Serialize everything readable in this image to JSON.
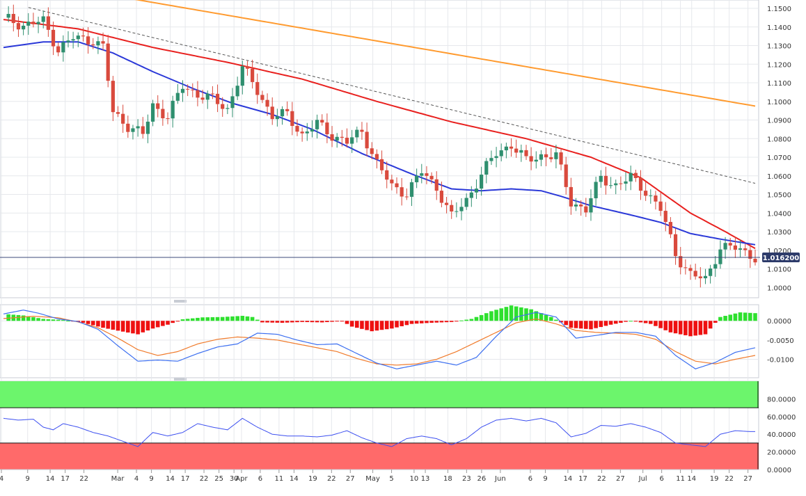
{
  "colors": {
    "bull": "#2f8f6f",
    "bear": "#d94a3d",
    "sma_200": "#ff9a2e",
    "sma_100": "#e8201e",
    "sma_50": "#2a38d8",
    "trendline": "#555555",
    "price_line": "#3c4a7a",
    "price_tag_bg": "#2d3b6a",
    "macd_pos": "#2ee02e",
    "macd_neg": "#ee1111",
    "macd_line": "#3c6ff0",
    "signal_line": "#f07a2a",
    "rsi_line": "#3c4ff0",
    "overbought_fill": "#6cf56c",
    "oversold_fill": "#ff6a6a",
    "grid": "#e6e8ec",
    "axis_text": "#333333"
  },
  "chart_data": [
    {
      "type": "candlestick",
      "title": "",
      "y_ticks": [
        "1.1500",
        "1.1400",
        "1.1300",
        "1.1200",
        "1.1100",
        "1.1000",
        "1.0900",
        "1.0800",
        "1.0700",
        "1.0600",
        "1.0500",
        "1.0400",
        "1.0300",
        "1.0200",
        "1.0100",
        "1.0000"
      ],
      "ylim": [
        0.9945,
        1.1545
      ],
      "x_ticks": [
        "4",
        "9",
        "14",
        "17",
        "22",
        "Mar",
        "4",
        "9",
        "14",
        "17",
        "22",
        "25",
        "30",
        "Apr",
        "6",
        "11",
        "14",
        "19",
        "22",
        "27",
        "May",
        "5",
        "10",
        "13",
        "18",
        "23",
        "26",
        "Jun",
        "6",
        "9",
        "14",
        "17",
        "22",
        "27",
        "Jul",
        "6",
        "11",
        "14",
        "19",
        "22",
        "27"
      ],
      "current_price": 1.0162,
      "current_price_label": "1.016200",
      "candles_close_path": [
        [
          0,
          1.145
        ],
        [
          4,
          1.141
        ],
        [
          8,
          1.143
        ],
        [
          11,
          1.128
        ],
        [
          14,
          1.134
        ],
        [
          18,
          1.133
        ],
        [
          20,
          1.129
        ],
        [
          22,
          1.094
        ],
        [
          25,
          1.087
        ],
        [
          28,
          1.082
        ],
        [
          30,
          1.098
        ],
        [
          33,
          1.092
        ],
        [
          36,
          1.108
        ],
        [
          39,
          1.104
        ],
        [
          42,
          1.101
        ],
        [
          45,
          1.096
        ],
        [
          48,
          1.118
        ],
        [
          51,
          1.106
        ],
        [
          54,
          1.092
        ],
        [
          57,
          1.093
        ],
        [
          60,
          1.082
        ],
        [
          63,
          1.088
        ],
        [
          66,
          1.082
        ],
        [
          69,
          1.078
        ],
        [
          72,
          1.084
        ],
        [
          75,
          1.067
        ],
        [
          78,
          1.054
        ],
        [
          81,
          1.051
        ],
        [
          84,
          1.062
        ],
        [
          87,
          1.054
        ],
        [
          90,
          1.038
        ],
        [
          93,
          1.047
        ],
        [
          96,
          1.061
        ],
        [
          99,
          1.072
        ],
        [
          102,
          1.077
        ],
        [
          105,
          1.068
        ],
        [
          108,
          1.071
        ],
        [
          111,
          1.071
        ],
        [
          114,
          1.046
        ],
        [
          117,
          1.042
        ],
        [
          120,
          1.059
        ],
        [
          123,
          1.055
        ],
        [
          126,
          1.059
        ],
        [
          129,
          1.052
        ],
        [
          132,
          1.042
        ],
        [
          135,
          1.018
        ],
        [
          138,
          1.007
        ],
        [
          141,
          1.004
        ],
        [
          144,
          1.022
        ],
        [
          147,
          1.021
        ],
        [
          150,
          1.018
        ],
        [
          151,
          1.0162
        ]
      ],
      "sma_200": [
        [
          0,
          1.167
        ],
        [
          151,
          1.0975
        ]
      ],
      "sma_100": [
        [
          0,
          1.144
        ],
        [
          15,
          1.139
        ],
        [
          30,
          1.129
        ],
        [
          45,
          1.121
        ],
        [
          60,
          1.112
        ],
        [
          75,
          1.1
        ],
        [
          90,
          1.089
        ],
        [
          105,
          1.08
        ],
        [
          118,
          1.07
        ],
        [
          128,
          1.059
        ],
        [
          138,
          1.04
        ],
        [
          145,
          1.03
        ],
        [
          151,
          1.021
        ]
      ],
      "sma_50": [
        [
          0,
          1.129
        ],
        [
          8,
          1.132
        ],
        [
          15,
          1.132
        ],
        [
          22,
          1.126
        ],
        [
          30,
          1.116
        ],
        [
          38,
          1.107
        ],
        [
          46,
          1.099
        ],
        [
          54,
          1.093
        ],
        [
          62,
          1.085
        ],
        [
          72,
          1.072
        ],
        [
          82,
          1.061
        ],
        [
          90,
          1.053
        ],
        [
          96,
          1.052
        ],
        [
          102,
          1.053
        ],
        [
          108,
          1.052
        ],
        [
          112,
          1.049
        ],
        [
          118,
          1.044
        ],
        [
          126,
          1.039
        ],
        [
          132,
          1.035
        ],
        [
          138,
          1.029
        ],
        [
          144,
          1.026
        ],
        [
          151,
          1.023
        ]
      ],
      "trendline": [
        [
          5,
          1.1505
        ],
        [
          151,
          1.056
        ]
      ]
    },
    {
      "type": "bar+line",
      "indicator": "MACD",
      "y_ticks": [
        "0.0000",
        "-0.0050",
        "-0.0100"
      ],
      "ylim": [
        -0.0148,
        0.0042
      ],
      "histogram": [
        [
          0,
          0.0018
        ],
        [
          4,
          0.0014
        ],
        [
          8,
          0.0005
        ],
        [
          12,
          0.0002
        ],
        [
          16,
          -0.0005
        ],
        [
          20,
          -0.0018
        ],
        [
          24,
          -0.0028
        ],
        [
          27,
          -0.0035
        ],
        [
          30,
          -0.002
        ],
        [
          33,
          -0.001
        ],
        [
          36,
          0.0004
        ],
        [
          40,
          0.0009
        ],
        [
          44,
          0.001
        ],
        [
          48,
          0.0013
        ],
        [
          50,
          0.001
        ],
        [
          52,
          -0.0004
        ],
        [
          56,
          -0.0005
        ],
        [
          60,
          -0.0003
        ],
        [
          64,
          -0.0004
        ],
        [
          68,
          -0.0001
        ],
        [
          70,
          -0.0015
        ],
        [
          74,
          -0.0027
        ],
        [
          78,
          -0.002
        ],
        [
          82,
          -0.0008
        ],
        [
          86,
          -0.0005
        ],
        [
          90,
          -0.0003
        ],
        [
          94,
          0.0005
        ],
        [
          98,
          0.0025
        ],
        [
          102,
          0.004
        ],
        [
          106,
          0.003
        ],
        [
          110,
          0.001
        ],
        [
          114,
          -0.0018
        ],
        [
          118,
          -0.0022
        ],
        [
          122,
          -0.001
        ],
        [
          126,
          0.0
        ],
        [
          130,
          -0.0008
        ],
        [
          134,
          -0.003
        ],
        [
          138,
          -0.004
        ],
        [
          141,
          -0.0035
        ],
        [
          144,
          0.001
        ],
        [
          148,
          0.0022
        ],
        [
          151,
          0.002
        ]
      ],
      "macd_line": [
        [
          0,
          0.0018
        ],
        [
          4,
          0.0028
        ],
        [
          7,
          0.002
        ],
        [
          11,
          0.0005
        ],
        [
          15,
          -0.0002
        ],
        [
          19,
          -0.0022
        ],
        [
          23,
          -0.0065
        ],
        [
          27,
          -0.0105
        ],
        [
          31,
          -0.0102
        ],
        [
          35,
          -0.0105
        ],
        [
          39,
          -0.0085
        ],
        [
          43,
          -0.0068
        ],
        [
          47,
          -0.006
        ],
        [
          51,
          -0.0032
        ],
        [
          55,
          -0.0035
        ],
        [
          59,
          -0.005
        ],
        [
          63,
          -0.0062
        ],
        [
          67,
          -0.006
        ],
        [
          71,
          -0.0085
        ],
        [
          75,
          -0.011
        ],
        [
          79,
          -0.0125
        ],
        [
          83,
          -0.0115
        ],
        [
          87,
          -0.0105
        ],
        [
          91,
          -0.0115
        ],
        [
          95,
          -0.0095
        ],
        [
          99,
          -0.004
        ],
        [
          103,
          0.001
        ],
        [
          107,
          0.0022
        ],
        [
          111,
          0.001
        ],
        [
          115,
          -0.0045
        ],
        [
          119,
          -0.0038
        ],
        [
          123,
          -0.003
        ],
        [
          127,
          -0.003
        ],
        [
          131,
          -0.004
        ],
        [
          135,
          -0.009
        ],
        [
          139,
          -0.0125
        ],
        [
          143,
          -0.0108
        ],
        [
          147,
          -0.0082
        ],
        [
          151,
          -0.007
        ]
      ],
      "signal_line": [
        [
          0,
          0.0006
        ],
        [
          6,
          0.0012
        ],
        [
          11,
          0.0008
        ],
        [
          15,
          -0.0003
        ],
        [
          19,
          -0.0018
        ],
        [
          23,
          -0.0045
        ],
        [
          27,
          -0.0075
        ],
        [
          31,
          -0.009
        ],
        [
          35,
          -0.008
        ],
        [
          39,
          -0.006
        ],
        [
          43,
          -0.0048
        ],
        [
          47,
          -0.0042
        ],
        [
          51,
          -0.0045
        ],
        [
          55,
          -0.005
        ],
        [
          59,
          -0.006
        ],
        [
          63,
          -0.007
        ],
        [
          67,
          -0.008
        ],
        [
          71,
          -0.0098
        ],
        [
          75,
          -0.0112
        ],
        [
          79,
          -0.0115
        ],
        [
          83,
          -0.0112
        ],
        [
          87,
          -0.01
        ],
        [
          91,
          -0.008
        ],
        [
          95,
          -0.0055
        ],
        [
          99,
          -0.003
        ],
        [
          103,
          -0.0005
        ],
        [
          107,
          0.0005
        ],
        [
          111,
          -0.0008
        ],
        [
          115,
          -0.0025
        ],
        [
          119,
          -0.003
        ],
        [
          123,
          -0.0032
        ],
        [
          127,
          -0.0035
        ],
        [
          131,
          -0.0048
        ],
        [
          135,
          -0.008
        ],
        [
          139,
          -0.0105
        ],
        [
          143,
          -0.0112
        ],
        [
          147,
          -0.01
        ],
        [
          151,
          -0.009
        ]
      ]
    },
    {
      "type": "line",
      "indicator": "RSI",
      "y_ticks": [
        "80.0000",
        "60.0000",
        "40.0000",
        "20.0000",
        "0.0000"
      ],
      "ylim": [
        0,
        100
      ],
      "overbought_band": [
        70,
        100
      ],
      "oversold_band": [
        0,
        30
      ],
      "rsi_line": [
        [
          0,
          58
        ],
        [
          3,
          56
        ],
        [
          6,
          57
        ],
        [
          8,
          48
        ],
        [
          10,
          45
        ],
        [
          12,
          52
        ],
        [
          15,
          48
        ],
        [
          18,
          42
        ],
        [
          21,
          38
        ],
        [
          24,
          32
        ],
        [
          27,
          26
        ],
        [
          30,
          42
        ],
        [
          33,
          38
        ],
        [
          36,
          42
        ],
        [
          39,
          52
        ],
        [
          42,
          48
        ],
        [
          45,
          45
        ],
        [
          48,
          58
        ],
        [
          51,
          48
        ],
        [
          54,
          40
        ],
        [
          57,
          38
        ],
        [
          60,
          38
        ],
        [
          63,
          37
        ],
        [
          66,
          39
        ],
        [
          69,
          44
        ],
        [
          72,
          36
        ],
        [
          75,
          30
        ],
        [
          78,
          26
        ],
        [
          81,
          35
        ],
        [
          84,
          38
        ],
        [
          87,
          35
        ],
        [
          90,
          28
        ],
        [
          93,
          35
        ],
        [
          96,
          48
        ],
        [
          99,
          56
        ],
        [
          102,
          58
        ],
        [
          105,
          55
        ],
        [
          108,
          58
        ],
        [
          111,
          53
        ],
        [
          114,
          37
        ],
        [
          117,
          41
        ],
        [
          120,
          50
        ],
        [
          123,
          49
        ],
        [
          126,
          52
        ],
        [
          129,
          48
        ],
        [
          132,
          42
        ],
        [
          135,
          30
        ],
        [
          138,
          28
        ],
        [
          141,
          26
        ],
        [
          144,
          40
        ],
        [
          147,
          44
        ],
        [
          150,
          43
        ],
        [
          151,
          43
        ]
      ]
    }
  ]
}
